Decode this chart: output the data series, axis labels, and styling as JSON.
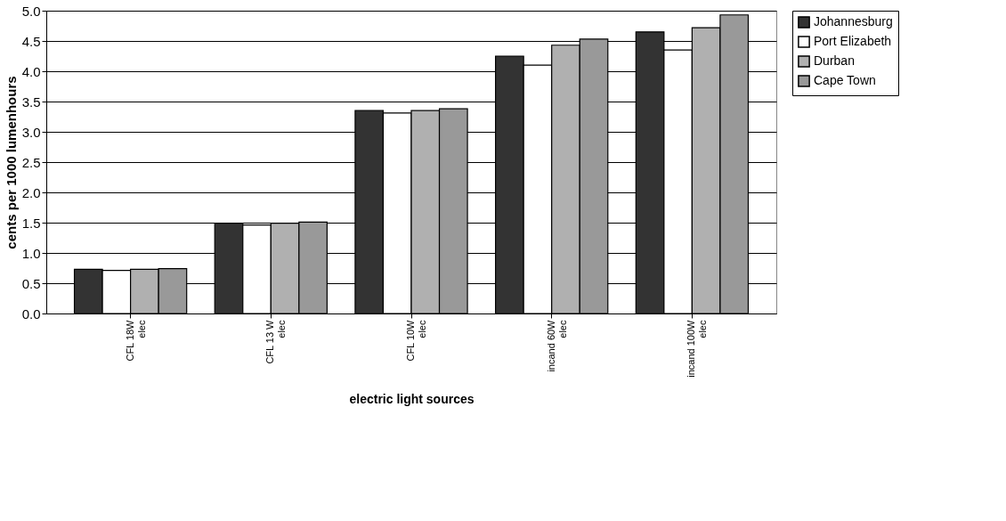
{
  "chart_data": {
    "type": "bar",
    "xlabel": "electric light sources",
    "ylabel": "cents per 1000 lumenhours",
    "categories": [
      "CFL 18W\nelec",
      "CFL 13 W\nelec",
      "CFL 10W\nelec",
      "incand 60W\nelec",
      "incand 100W\nelec"
    ],
    "series": [
      {
        "name": "Johannesburg",
        "color": "#333333",
        "values": [
          0.73,
          1.49,
          3.35,
          4.25,
          4.65
        ]
      },
      {
        "name": "Port Elizabeth",
        "color": "#ffffff",
        "values": [
          0.71,
          1.46,
          3.31,
          4.1,
          4.35
        ]
      },
      {
        "name": "Durban",
        "color": "#b0b0b0",
        "values": [
          0.73,
          1.49,
          3.35,
          4.43,
          4.72
        ]
      },
      {
        "name": "Cape Town",
        "color": "#999999",
        "values": [
          0.74,
          1.51,
          3.38,
          4.53,
          4.93
        ]
      }
    ],
    "ylim": [
      0,
      5
    ],
    "yticks": [
      {
        "value": 0,
        "label": "0.0"
      },
      0.5,
      {
        "value": 1,
        "label": "1.0"
      },
      1.5,
      {
        "value": 2,
        "label": "2.0"
      },
      2.5,
      {
        "value": 3,
        "label": "3.0"
      },
      3.5,
      {
        "value": 4,
        "label": "4.0"
      },
      4.5,
      {
        "value": 5,
        "label": "5.0"
      }
    ],
    "grid": "y",
    "legend": "right"
  }
}
